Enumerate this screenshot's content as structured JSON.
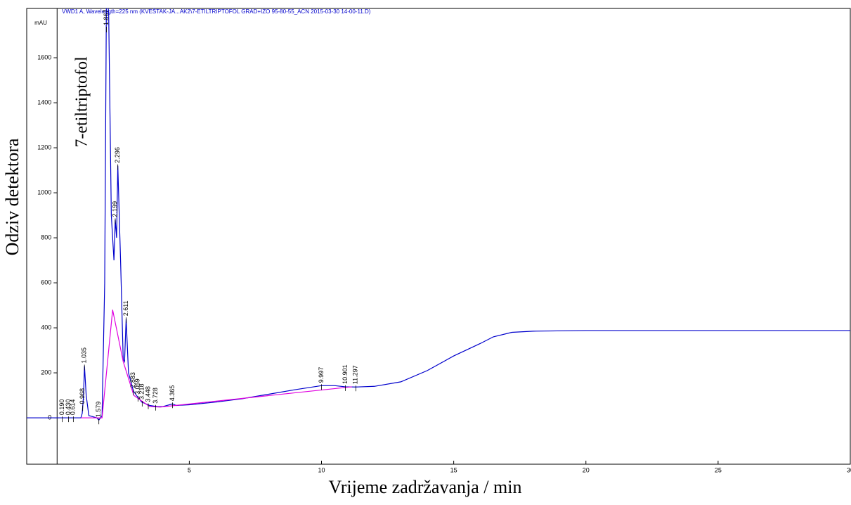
{
  "chart_data": {
    "type": "line",
    "title": "VWD1 A, Wavelength=225 nm (KVEŠTAK-JA...AK2\\7-ETILTRIPTOFOL GRAD+IZO 95-80-55_ACN 2015-03-30 14-00-11.D)",
    "y_unit": "mAU",
    "xlabel": "Vrijeme zadržavanja / min",
    "ylabel": "Odziv detektora",
    "annotation": "7-etiltriptofol",
    "xlim": [
      -1.15,
      30
    ],
    "ylim": [
      -206,
      1819
    ],
    "xticks": [
      5,
      10,
      15,
      20,
      25,
      30
    ],
    "yticks": [
      0,
      200,
      400,
      600,
      800,
      1000,
      1200,
      1400,
      1600
    ],
    "series": [
      {
        "color": "#0000cc",
        "x": [
          -1.15,
          0.9,
          0.95,
          1.0,
          1.035,
          1.1,
          1.2,
          1.5,
          1.58,
          1.7,
          1.8,
          1.867,
          1.95,
          2.05,
          2.15,
          2.199,
          2.25,
          2.296,
          2.4,
          2.5,
          2.55,
          2.611,
          2.7,
          2.883,
          3.0,
          3.2,
          3.5,
          3.8,
          4.0,
          4.365,
          4.5,
          5,
          6,
          7,
          8,
          9,
          9.997,
          10.5,
          10.901,
          11.297,
          12,
          13,
          14,
          15,
          16,
          16.5,
          17.2,
          18,
          20,
          30
        ],
        "values": [
          0,
          0,
          20,
          100,
          230,
          100,
          10,
          0,
          -10,
          10,
          600,
          1900,
          1800,
          900,
          700,
          880,
          800,
          1120,
          700,
          260,
          250,
          440,
          200,
          120,
          100,
          70,
          55,
          50,
          50,
          62,
          55,
          58,
          70,
          85,
          105,
          125,
          143,
          143,
          138,
          137,
          140,
          160,
          210,
          275,
          330,
          360,
          380,
          385,
          388,
          388
        ]
      },
      {
        "color": "#e000e0",
        "x": [
          0.9,
          1.2,
          1.7,
          2.1,
          2.5,
          2.9,
          3.5,
          3.9,
          11.15
        ],
        "values": [
          0,
          0,
          0,
          480,
          250,
          100,
          50,
          48,
          138
        ]
      }
    ],
    "peaks": [
      {
        "value": 0.19,
        "label": "0.190"
      },
      {
        "value": 0.43,
        "label": "0.430"
      },
      {
        "value": 0.614,
        "label": "0.614"
      },
      {
        "value": 0.968,
        "label": "0.968"
      },
      {
        "value": 1.035,
        "label": "1.035"
      },
      {
        "value": 1.579,
        "label": "1.579"
      },
      {
        "value": 1.867,
        "label": "1.867"
      },
      {
        "value": 2.199,
        "label": "2.199"
      },
      {
        "value": 2.296,
        "label": "2.296"
      },
      {
        "value": 2.611,
        "label": "2.611"
      },
      {
        "value": 2.883,
        "label": "2.883"
      },
      {
        "value": 3.059,
        "label": "3.059"
      },
      {
        "value": 3.218,
        "label": "3.218"
      },
      {
        "value": 3.448,
        "label": "3.448"
      },
      {
        "value": 3.728,
        "label": "3.728"
      },
      {
        "value": 4.365,
        "label": "4.365"
      },
      {
        "value": 9.997,
        "label": "9.997"
      },
      {
        "value": 10.901,
        "label": "10.901"
      },
      {
        "value": 11.297,
        "label": "11.297"
      }
    ]
  }
}
